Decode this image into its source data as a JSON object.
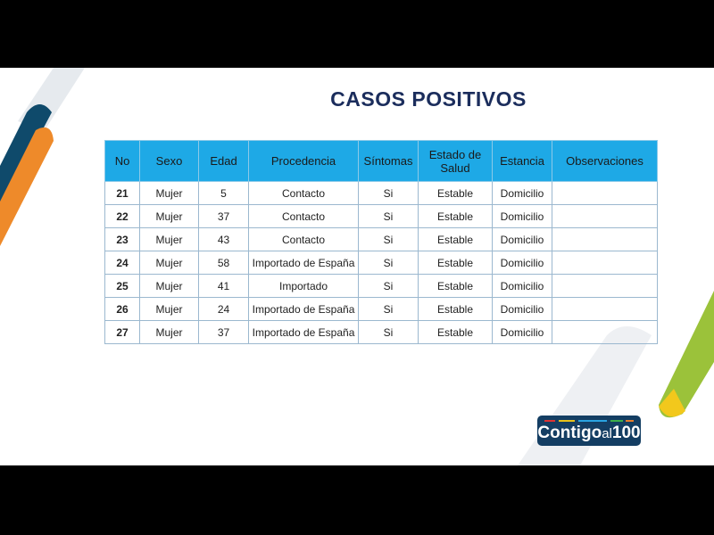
{
  "title": "CASOS POSITIVOS",
  "columns": [
    "No",
    "Sexo",
    "Edad",
    "Procedencia",
    "Síntomas",
    "Estado de Salud",
    "Estancia",
    "Observaciones"
  ],
  "rows": [
    [
      "21",
      "Mujer",
      "5",
      "Contacto",
      "Si",
      "Estable",
      "Domicilio",
      ""
    ],
    [
      "22",
      "Mujer",
      "37",
      "Contacto",
      "Si",
      "Estable",
      "Domicilio",
      ""
    ],
    [
      "23",
      "Mujer",
      "43",
      "Contacto",
      "Si",
      "Estable",
      "Domicilio",
      ""
    ],
    [
      "24",
      "Mujer",
      "58",
      "Importado de España",
      "Si",
      "Estable",
      "Domicilio",
      ""
    ],
    [
      "25",
      "Mujer",
      "41",
      "Importado",
      "Si",
      "Estable",
      "Domicilio",
      ""
    ],
    [
      "26",
      "Mujer",
      "24",
      "Importado de España",
      "Si",
      "Estable",
      "Domicilio",
      ""
    ],
    [
      "27",
      "Mujer",
      "37",
      "Importado de España",
      "Si",
      "Estable",
      "Domicilio",
      ""
    ]
  ],
  "logo": {
    "text_a": "Contigo",
    "text_b": "al",
    "text_c": "100"
  },
  "colors": {
    "header": "#1ea9e6",
    "title": "#1b2d5c",
    "orange": "#ee8a2a",
    "navy": "#0f4a6b",
    "green": "#8cbf2e",
    "yellow": "#f2c81c"
  }
}
